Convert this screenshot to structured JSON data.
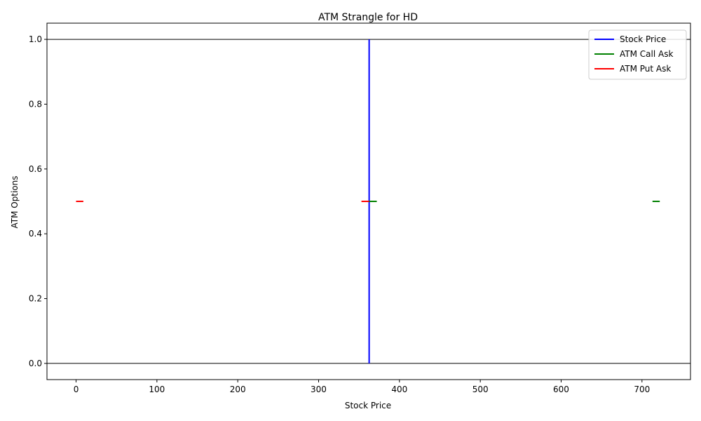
{
  "chart_data": {
    "type": "line",
    "title": "ATM Strangle for HD",
    "xlabel": "Stock Price",
    "ylabel": "ATM Options",
    "xlim": [
      -36,
      760
    ],
    "ylim": [
      -0.05,
      1.05
    ],
    "xticks": [
      0,
      100,
      200,
      300,
      400,
      500,
      600,
      700
    ],
    "yticks": [
      "0.0",
      "0.2",
      "0.4",
      "0.6",
      "0.8",
      "1.0"
    ],
    "grid": false,
    "legend_position": "upper right",
    "reference_lines": [
      0,
      1
    ],
    "series": [
      {
        "name": "Stock Price",
        "color": "#0000ff",
        "style": "solid",
        "segments": [
          {
            "x": [
              362.5,
              362.5
            ],
            "y": [
              0,
              1
            ]
          }
        ]
      },
      {
        "name": "ATM Call Ask",
        "color": "#008000",
        "style": "solid",
        "segments": [
          {
            "x": [
              362.5,
              372
            ],
            "y": [
              0.5,
              0.5
            ]
          },
          {
            "x": [
              713,
              722
            ],
            "y": [
              0.5,
              0.5
            ]
          }
        ]
      },
      {
        "name": "ATM Put Ask",
        "color": "#ff0000",
        "style": "solid",
        "segments": [
          {
            "x": [
              353,
              362.5
            ],
            "y": [
              0.5,
              0.5
            ]
          },
          {
            "x": [
              0,
              9
            ],
            "y": [
              0.5,
              0.5
            ]
          }
        ]
      }
    ]
  }
}
